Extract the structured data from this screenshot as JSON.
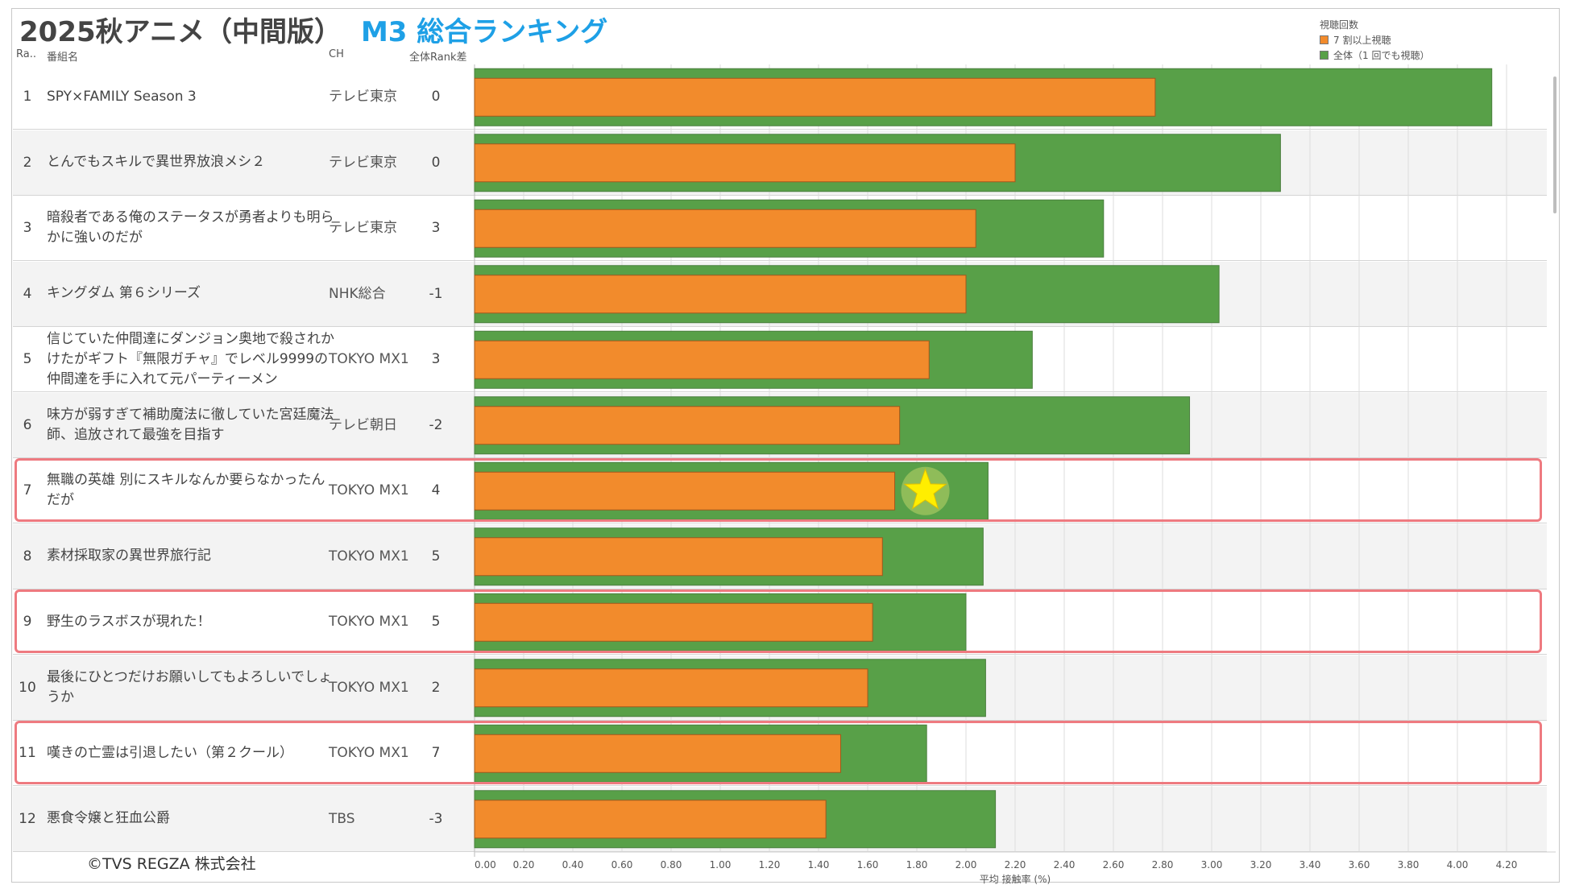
{
  "title": "2025秋アニメ（中間版）",
  "subtitle": "M3 総合ランキング",
  "headers": {
    "rank": "Ra..",
    "name": "番組名",
    "ch": "CH",
    "diff": "全体Rank差"
  },
  "legend": {
    "title": "視聴回数",
    "items": [
      {
        "label": "7 割以上視聴",
        "color": "#f28b2c"
      },
      {
        "label": "全体（1 回でも視聴）",
        "color": "#58a048"
      }
    ]
  },
  "copyright": "©TVS REGZA 株式会社",
  "rows": [
    {
      "rank": "1",
      "name": "SPY×FAMILY Season 3",
      "ch": "テレビ東京",
      "diff": "0"
    },
    {
      "rank": "2",
      "name": "とんでもスキルで異世界放浪メシ２",
      "ch": "テレビ東京",
      "diff": "0"
    },
    {
      "rank": "3",
      "name": "暗殺者である俺のステータスが勇者よりも明らかに強いのだが",
      "ch": "テレビ東京",
      "diff": "3"
    },
    {
      "rank": "4",
      "name": "キングダム 第６シリーズ",
      "ch": "NHK総合",
      "diff": "-1"
    },
    {
      "rank": "5",
      "name": "信じていた仲間達にダンジョン奥地で殺されかけたがギフト『無限ガチャ』でレベル9999の仲間達を手に入れて元パーティーメン",
      "ch": "TOKYO MX1",
      "diff": "3"
    },
    {
      "rank": "6",
      "name": "味方が弱すぎて補助魔法に徹していた宮廷魔法師、追放されて最強を目指す",
      "ch": "テレビ朝日",
      "diff": "-2"
    },
    {
      "rank": "7",
      "name": "無職の英雄 別にスキルなんか要らなかったんだが",
      "ch": "TOKYO MX1",
      "diff": "4"
    },
    {
      "rank": "8",
      "name": "素材採取家の異世界旅行記",
      "ch": "TOKYO MX1",
      "diff": "5"
    },
    {
      "rank": "9",
      "name": "野生のラスボスが現れた！",
      "ch": "TOKYO MX1",
      "diff": "5"
    },
    {
      "rank": "10",
      "name": "最後にひとつだけお願いしてもよろしいでしょうか",
      "ch": "TOKYO MX1",
      "diff": "2"
    },
    {
      "rank": "11",
      "name": "嘆きの亡霊は引退したい（第２クール）",
      "ch": "TOKYO MX1",
      "diff": "7"
    },
    {
      "rank": "12",
      "name": "悪食令嬢と狂血公爵",
      "ch": "TBS",
      "diff": "-3"
    }
  ],
  "highlighted_ranks": [
    "7",
    "9",
    "11"
  ],
  "star_rank": "7",
  "chart_data": {
    "type": "bar",
    "orientation": "horizontal",
    "xlabel": "平均 接触率 (%)",
    "xlim": [
      0,
      4.4
    ],
    "xticks": [
      0.0,
      0.2,
      0.4,
      0.6,
      0.8,
      1.0,
      1.2,
      1.4,
      1.6,
      1.8,
      2.0,
      2.2,
      2.4,
      2.6,
      2.8,
      3.0,
      3.2,
      3.4,
      3.6,
      3.8,
      4.0,
      4.2
    ],
    "xtick_labels": [
      "0.00",
      "0.20",
      "0.40",
      "0.60",
      "0.80",
      "1.00",
      "1.20",
      "1.40",
      "1.60",
      "1.80",
      "2.00",
      "2.20",
      "2.40",
      "2.60",
      "2.80",
      "3.00",
      "3.20",
      "3.40",
      "3.60",
      "3.80",
      "4.00",
      "4.20"
    ],
    "grid": true,
    "categories": [
      "1",
      "2",
      "3",
      "4",
      "5",
      "6",
      "7",
      "8",
      "9",
      "10",
      "11",
      "12"
    ],
    "series": [
      {
        "name": "全体（1 回でも視聴）",
        "color": "#58a048",
        "values": [
          4.14,
          3.28,
          2.56,
          3.03,
          2.27,
          2.91,
          2.09,
          2.07,
          2.0,
          2.08,
          1.84,
          2.12
        ]
      },
      {
        "name": "7 割以上視聴",
        "color": "#f28b2c",
        "values": [
          2.77,
          2.2,
          2.04,
          2.0,
          1.85,
          1.73,
          1.71,
          1.66,
          1.62,
          1.6,
          1.49,
          1.43
        ]
      }
    ]
  }
}
